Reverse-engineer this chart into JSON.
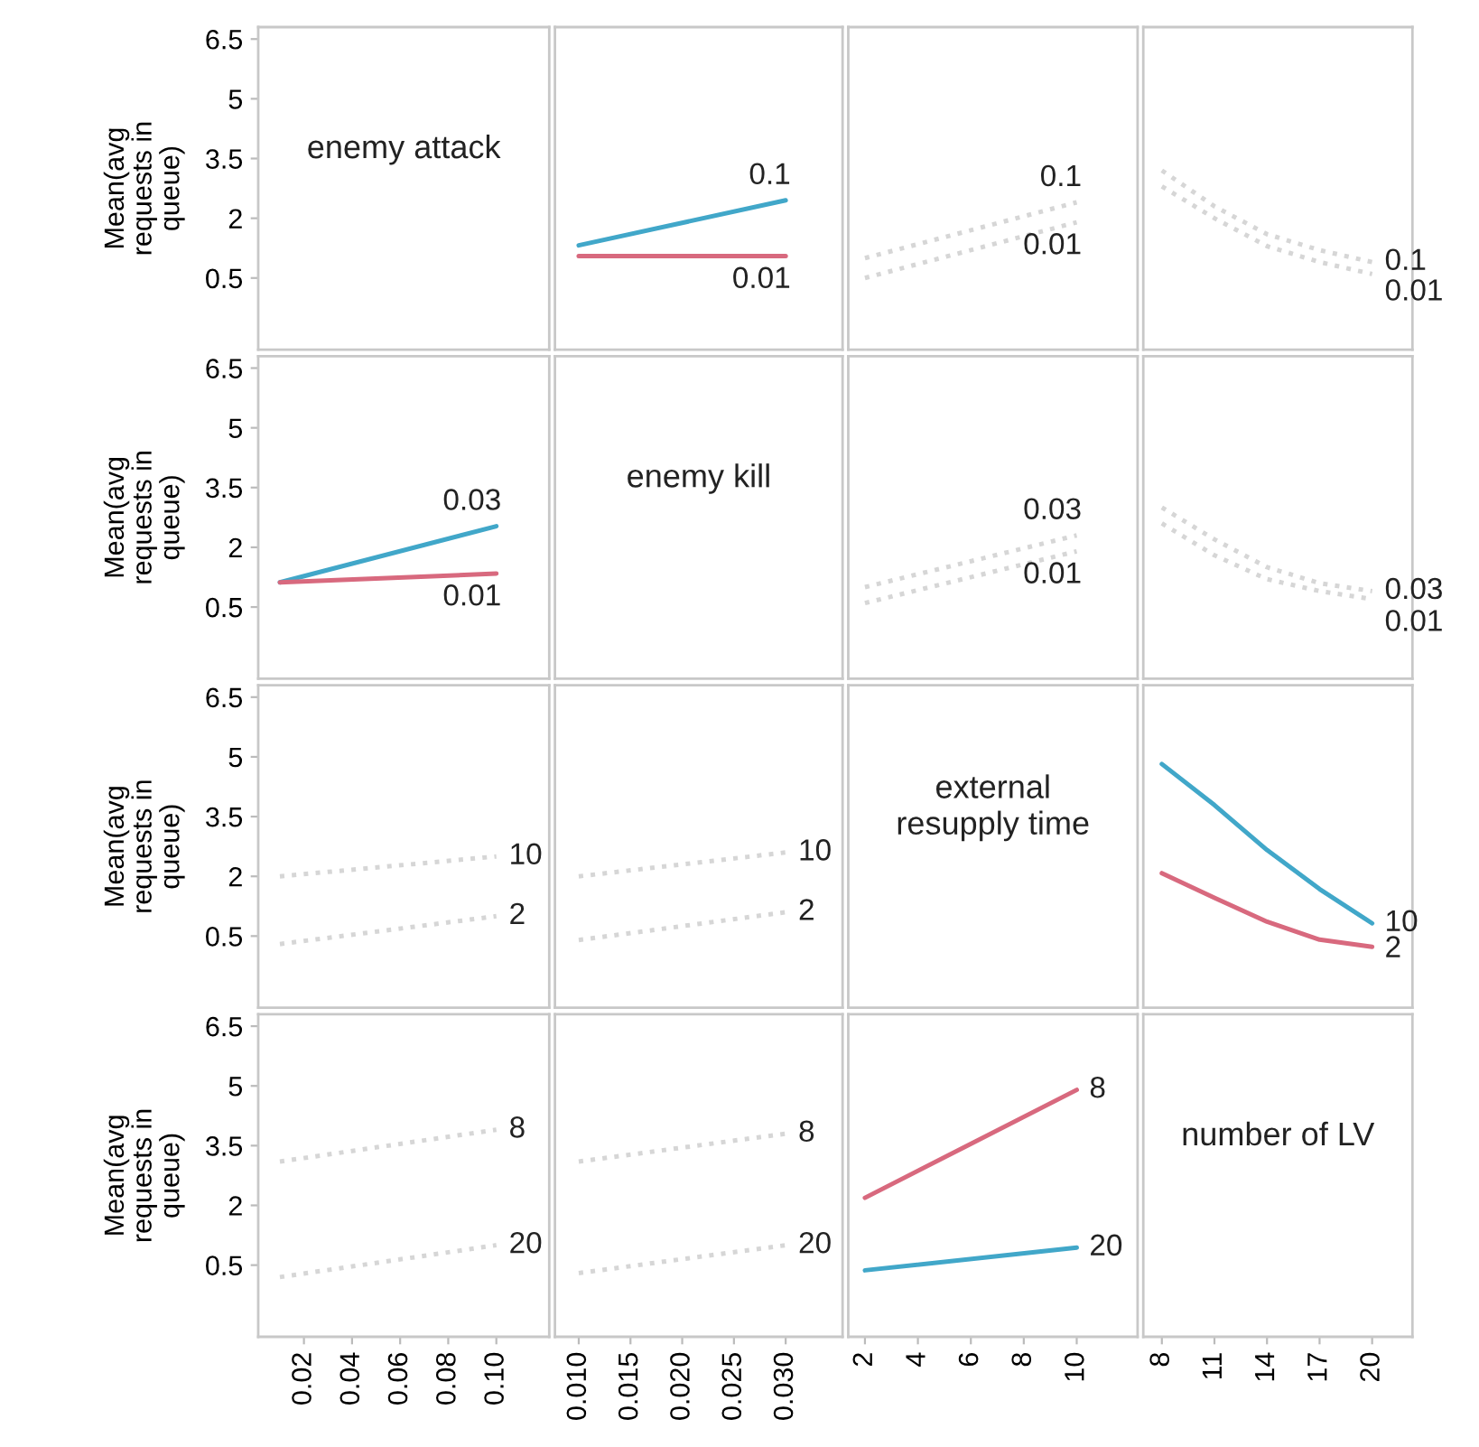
{
  "chart_data": [
    {
      "type": "line",
      "annotations": [
        "enemy attack"
      ],
      "xlim": [
        0.001,
        0.122
      ],
      "xticks": [
        0.02,
        0.04,
        0.06,
        0.08,
        0.1
      ],
      "ylim": [
        -1.3,
        6.8
      ],
      "yticks": [
        6.5,
        5,
        3.5,
        2,
        0.5
      ],
      "ylabel": "Mean(avg requests in queue)",
      "tick_labels": "y"
    },
    {
      "type": "line",
      "xlim": [
        0.0077,
        0.0355
      ],
      "xticks": [
        0.01,
        0.015,
        0.02,
        0.025,
        0.03
      ],
      "ylim": [
        -1.3,
        6.8
      ],
      "yticks": [
        6.5,
        5,
        3.5,
        2,
        0.5
      ],
      "tick_labels": false,
      "series": [
        {
          "name": "0.1",
          "color": "#41a7c9",
          "x": [
            0.01,
            0.03
          ],
          "values": [
            1.32,
            2.45
          ]
        },
        {
          "name": "0.01",
          "color": "#d8697e",
          "x": [
            0.01,
            0.03
          ],
          "values": [
            1.05,
            1.05
          ]
        }
      ]
    },
    {
      "type": "line",
      "line_style": "dotted",
      "xlim": [
        1.37,
        12.3
      ],
      "xticks": [
        2,
        4,
        6,
        8,
        10
      ],
      "ylim": [
        -1.3,
        6.8
      ],
      "yticks": [
        6.5,
        5,
        3.5,
        2,
        0.5
      ],
      "tick_labels": false,
      "series": [
        {
          "name": "0.1",
          "color": "#d6d6d6",
          "x": [
            2,
            10
          ],
          "values": [
            1.0,
            2.4
          ]
        },
        {
          "name": "0.01",
          "color": "#d6d6d6",
          "x": [
            2,
            10
          ],
          "values": [
            0.5,
            1.9
          ]
        }
      ]
    },
    {
      "type": "line",
      "line_style": "dotted",
      "xlim": [
        6.94,
        22.3
      ],
      "xticks": [
        8,
        11,
        14,
        17,
        20
      ],
      "ylim": [
        -1.3,
        6.8
      ],
      "yticks": [
        6.5,
        5,
        3.5,
        2,
        0.5
      ],
      "tick_labels": false,
      "series": [
        {
          "name": "0.1",
          "color": "#d6d6d6",
          "x": [
            8,
            11,
            14,
            17,
            20
          ],
          "values": [
            3.2,
            2.3,
            1.6,
            1.2,
            0.9
          ]
        },
        {
          "name": "0.01",
          "color": "#d6d6d6",
          "x": [
            8,
            11,
            14,
            17,
            20
          ],
          "values": [
            2.8,
            2.0,
            1.3,
            0.9,
            0.6
          ]
        }
      ]
    },
    {
      "type": "line",
      "xlim": [
        0.001,
        0.122
      ],
      "xticks": [
        0.02,
        0.04,
        0.06,
        0.08,
        0.1
      ],
      "ylim": [
        -1.3,
        6.8
      ],
      "yticks": [
        6.5,
        5,
        3.5,
        2,
        0.5
      ],
      "ylabel": "Mean(avg requests in queue)",
      "tick_labels": "y",
      "series": [
        {
          "name": "0.03",
          "color": "#41a7c9",
          "x": [
            0.01,
            0.1
          ],
          "values": [
            1.12,
            2.53
          ]
        },
        {
          "name": "0.01",
          "color": "#d8697e",
          "x": [
            0.01,
            0.1
          ],
          "values": [
            1.12,
            1.34
          ]
        }
      ]
    },
    {
      "type": "line",
      "annotations": [
        "enemy kill"
      ],
      "xlim": [
        0.0077,
        0.0355
      ],
      "xticks": [
        0.01,
        0.015,
        0.02,
        0.025,
        0.03
      ],
      "ylim": [
        -1.3,
        6.8
      ],
      "yticks": [
        6.5,
        5,
        3.5,
        2,
        0.5
      ],
      "tick_labels": false
    },
    {
      "type": "line",
      "line_style": "dotted",
      "xlim": [
        1.37,
        12.3
      ],
      "xticks": [
        2,
        4,
        6,
        8,
        10
      ],
      "ylim": [
        -1.3,
        6.8
      ],
      "yticks": [
        6.5,
        5,
        3.5,
        2,
        0.5
      ],
      "tick_labels": false,
      "series": [
        {
          "name": "0.03",
          "color": "#d6d6d6",
          "x": [
            2,
            10
          ],
          "values": [
            1.0,
            2.3
          ]
        },
        {
          "name": "0.01",
          "color": "#d6d6d6",
          "x": [
            2,
            10
          ],
          "values": [
            0.6,
            1.9
          ]
        }
      ]
    },
    {
      "type": "line",
      "line_style": "dotted",
      "xlim": [
        6.94,
        22.3
      ],
      "xticks": [
        8,
        11,
        14,
        17,
        20
      ],
      "ylim": [
        -1.3,
        6.8
      ],
      "yticks": [
        6.5,
        5,
        3.5,
        2,
        0.5
      ],
      "tick_labels": false,
      "series": [
        {
          "name": "0.03",
          "color": "#d6d6d6",
          "x": [
            8,
            11,
            14,
            17,
            20
          ],
          "values": [
            3.0,
            2.2,
            1.5,
            1.1,
            0.9
          ]
        },
        {
          "name": "0.01",
          "color": "#d6d6d6",
          "x": [
            8,
            11,
            14,
            17,
            20
          ],
          "values": [
            2.6,
            1.8,
            1.2,
            0.9,
            0.7
          ]
        }
      ]
    },
    {
      "type": "line",
      "line_style": "dotted",
      "xlim": [
        0.001,
        0.122
      ],
      "xticks": [
        0.02,
        0.04,
        0.06,
        0.08,
        0.1
      ],
      "ylim": [
        -1.3,
        6.8
      ],
      "yticks": [
        6.5,
        5,
        3.5,
        2,
        0.5
      ],
      "ylabel": "Mean(avg requests in queue)",
      "tick_labels": "y",
      "series": [
        {
          "name": "10",
          "color": "#d6d6d6",
          "x": [
            0.01,
            0.1
          ],
          "values": [
            2.0,
            2.5
          ]
        },
        {
          "name": "2",
          "color": "#d6d6d6",
          "x": [
            0.01,
            0.1
          ],
          "values": [
            0.3,
            1.0
          ]
        }
      ]
    },
    {
      "type": "line",
      "line_style": "dotted",
      "xlim": [
        0.0077,
        0.0355
      ],
      "xticks": [
        0.01,
        0.015,
        0.02,
        0.025,
        0.03
      ],
      "ylim": [
        -1.3,
        6.8
      ],
      "yticks": [
        6.5,
        5,
        3.5,
        2,
        0.5
      ],
      "tick_labels": false,
      "series": [
        {
          "name": "10",
          "color": "#d6d6d6",
          "x": [
            0.01,
            0.03
          ],
          "values": [
            2.0,
            2.6
          ]
        },
        {
          "name": "2",
          "color": "#d6d6d6",
          "x": [
            0.01,
            0.03
          ],
          "values": [
            0.4,
            1.1
          ]
        }
      ]
    },
    {
      "type": "line",
      "annotations": [
        "external resupply time"
      ],
      "xlim": [
        1.37,
        12.3
      ],
      "xticks": [
        2,
        4,
        6,
        8,
        10
      ],
      "ylim": [
        -1.3,
        6.8
      ],
      "yticks": [
        6.5,
        5,
        3.5,
        2,
        0.5
      ],
      "tick_labels": false
    },
    {
      "type": "line",
      "xlim": [
        6.94,
        22.3
      ],
      "xticks": [
        8,
        11,
        14,
        17,
        20
      ],
      "ylim": [
        -1.3,
        6.8
      ],
      "yticks": [
        6.5,
        5,
        3.5,
        2,
        0.5
      ],
      "tick_labels": false,
      "series": [
        {
          "name": "10",
          "color": "#41a7c9",
          "x": [
            8,
            11,
            14,
            17,
            20
          ],
          "values": [
            4.82,
            3.79,
            2.66,
            1.68,
            0.82
          ]
        },
        {
          "name": "2",
          "color": "#d8697e",
          "x": [
            8,
            11,
            14,
            17,
            20
          ],
          "values": [
            2.08,
            1.46,
            0.86,
            0.41,
            0.23
          ]
        }
      ]
    },
    {
      "type": "line",
      "line_style": "dotted",
      "xlim": [
        0.001,
        0.122
      ],
      "xticks": [
        0.02,
        0.04,
        0.06,
        0.08,
        {
          "value": 0.1,
          "label": "0.10"
        }
      ],
      "ylim": [
        -1.3,
        6.8
      ],
      "yticks": [
        6.5,
        5,
        3.5,
        2,
        0.5
      ],
      "ylabel": "Mean(avg requests in queue)",
      "series": [
        {
          "name": "8",
          "color": "#d6d6d6",
          "x": [
            0.01,
            0.1
          ],
          "values": [
            3.1,
            3.9
          ]
        },
        {
          "name": "20",
          "color": "#d6d6d6",
          "x": [
            0.01,
            0.1
          ],
          "values": [
            0.2,
            1.0
          ]
        }
      ]
    },
    {
      "type": "line",
      "line_style": "dotted",
      "xlim": [
        0.0077,
        0.0355
      ],
      "xticks": [
        {
          "value": 0.01,
          "label": "0.010"
        },
        {
          "value": 0.015,
          "label": "0.015"
        },
        {
          "value": 0.02,
          "label": "0.020"
        },
        {
          "value": 0.025,
          "label": "0.025"
        },
        {
          "value": 0.03,
          "label": "0.030"
        }
      ],
      "ylim": [
        -1.3,
        6.8
      ],
      "yticks": [
        6.5,
        5,
        3.5,
        2,
        0.5
      ],
      "tick_labels": "x",
      "series": [
        {
          "name": "8",
          "color": "#d6d6d6",
          "x": [
            0.01,
            0.03
          ],
          "values": [
            3.1,
            3.8
          ]
        },
        {
          "name": "20",
          "color": "#d6d6d6",
          "x": [
            0.01,
            0.03
          ],
          "values": [
            0.3,
            1.0
          ]
        }
      ]
    },
    {
      "type": "line",
      "xlim": [
        1.37,
        12.3
      ],
      "xticks": [
        2,
        4,
        6,
        8,
        10
      ],
      "ylim": [
        -1.3,
        6.8
      ],
      "yticks": [
        6.5,
        5,
        3.5,
        2,
        0.5
      ],
      "tick_labels": "x",
      "series": [
        {
          "name": "8",
          "color": "#d8697e",
          "x": [
            2,
            10
          ],
          "values": [
            2.19,
            4.9
          ]
        },
        {
          "name": "20",
          "color": "#41a7c9",
          "x": [
            2,
            10
          ],
          "values": [
            0.37,
            0.94
          ]
        }
      ]
    },
    {
      "type": "line",
      "annotations": [
        "number of LV"
      ],
      "xlim": [
        6.94,
        22.3
      ],
      "xticks": [
        8,
        11,
        14,
        17,
        20
      ],
      "ylim": [
        -1.3,
        6.8
      ],
      "yticks": [
        6.5,
        5,
        3.5,
        2,
        0.5
      ],
      "tick_labels": "x"
    }
  ]
}
